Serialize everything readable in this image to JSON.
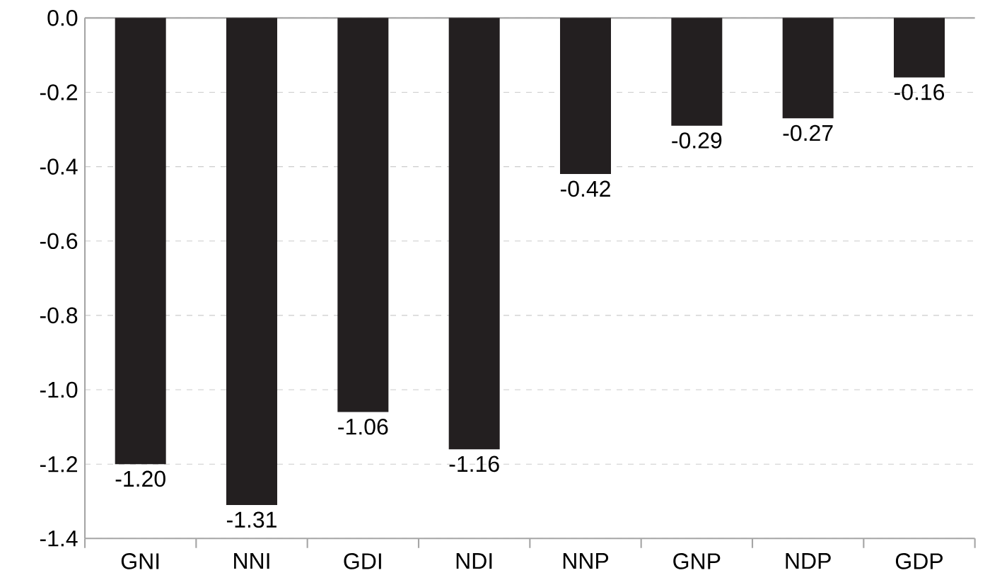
{
  "chart_data": {
    "type": "bar",
    "categories": [
      "GNI",
      "NNI",
      "GDI",
      "NDI",
      "NNP",
      "GNP",
      "NDP",
      "GDP"
    ],
    "values": [
      -1.2,
      -1.31,
      -1.06,
      -1.16,
      -0.42,
      -0.29,
      -0.27,
      -0.16
    ],
    "value_labels": [
      "-1.20",
      "-1.31",
      "-1.06",
      "-1.16",
      "-0.42",
      "-0.29",
      "-0.27",
      "-0.16"
    ],
    "color": "#231f20",
    "ylim": [
      -1.4,
      0
    ],
    "yticks": [
      {
        "value": 0,
        "label": "0.0"
      },
      {
        "value": -0.2,
        "label": "-0.2"
      },
      {
        "value": -0.4,
        "label": "-0.4"
      },
      {
        "value": -0.6,
        "label": "-0.6"
      },
      {
        "value": -0.8,
        "label": "-0.8"
      },
      {
        "value": -1.0,
        "label": "-1.0"
      },
      {
        "value": -1.2,
        "label": "-1.2"
      },
      {
        "value": -1.4,
        "label": "-1.4"
      }
    ],
    "grid": "y"
  }
}
